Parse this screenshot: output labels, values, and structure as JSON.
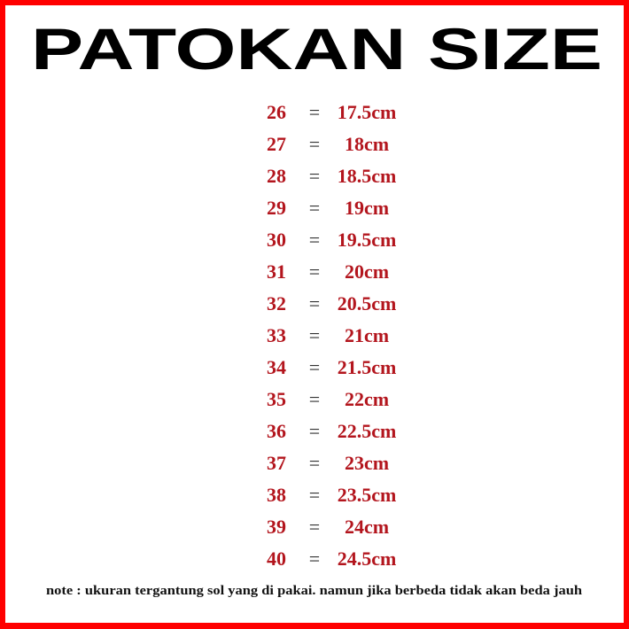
{
  "title": "PATOKAN SIZE",
  "colors": {
    "border": "#ff0000",
    "title": "#000000",
    "rows": "#b3151d"
  },
  "rows": [
    {
      "size": "26",
      "eq": "=",
      "length": "17.5cm"
    },
    {
      "size": "27",
      "eq": "=",
      "length": "18cm"
    },
    {
      "size": "28",
      "eq": "=",
      "length": "18.5cm"
    },
    {
      "size": "29",
      "eq": "=",
      "length": "19cm"
    },
    {
      "size": "30",
      "eq": "=",
      "length": "19.5cm"
    },
    {
      "size": "31",
      "eq": "=",
      "length": "20cm"
    },
    {
      "size": "32",
      "eq": "=",
      "length": "20.5cm"
    },
    {
      "size": "33",
      "eq": "=",
      "length": "21cm"
    },
    {
      "size": "34",
      "eq": "=",
      "length": "21.5cm"
    },
    {
      "size": "35",
      "eq": "=",
      "length": "22cm"
    },
    {
      "size": "36",
      "eq": "=",
      "length": "22.5cm"
    },
    {
      "size": "37",
      "eq": "=",
      "length": "23cm"
    },
    {
      "size": "38",
      "eq": "=",
      "length": "23.5cm"
    },
    {
      "size": "39",
      "eq": "=",
      "length": "24cm"
    },
    {
      "size": "40",
      "eq": "=",
      "length": "24.5cm"
    }
  ],
  "note": "note : ukuran tergantung sol yang di pakai. namun jika berbeda tidak akan beda jauh"
}
